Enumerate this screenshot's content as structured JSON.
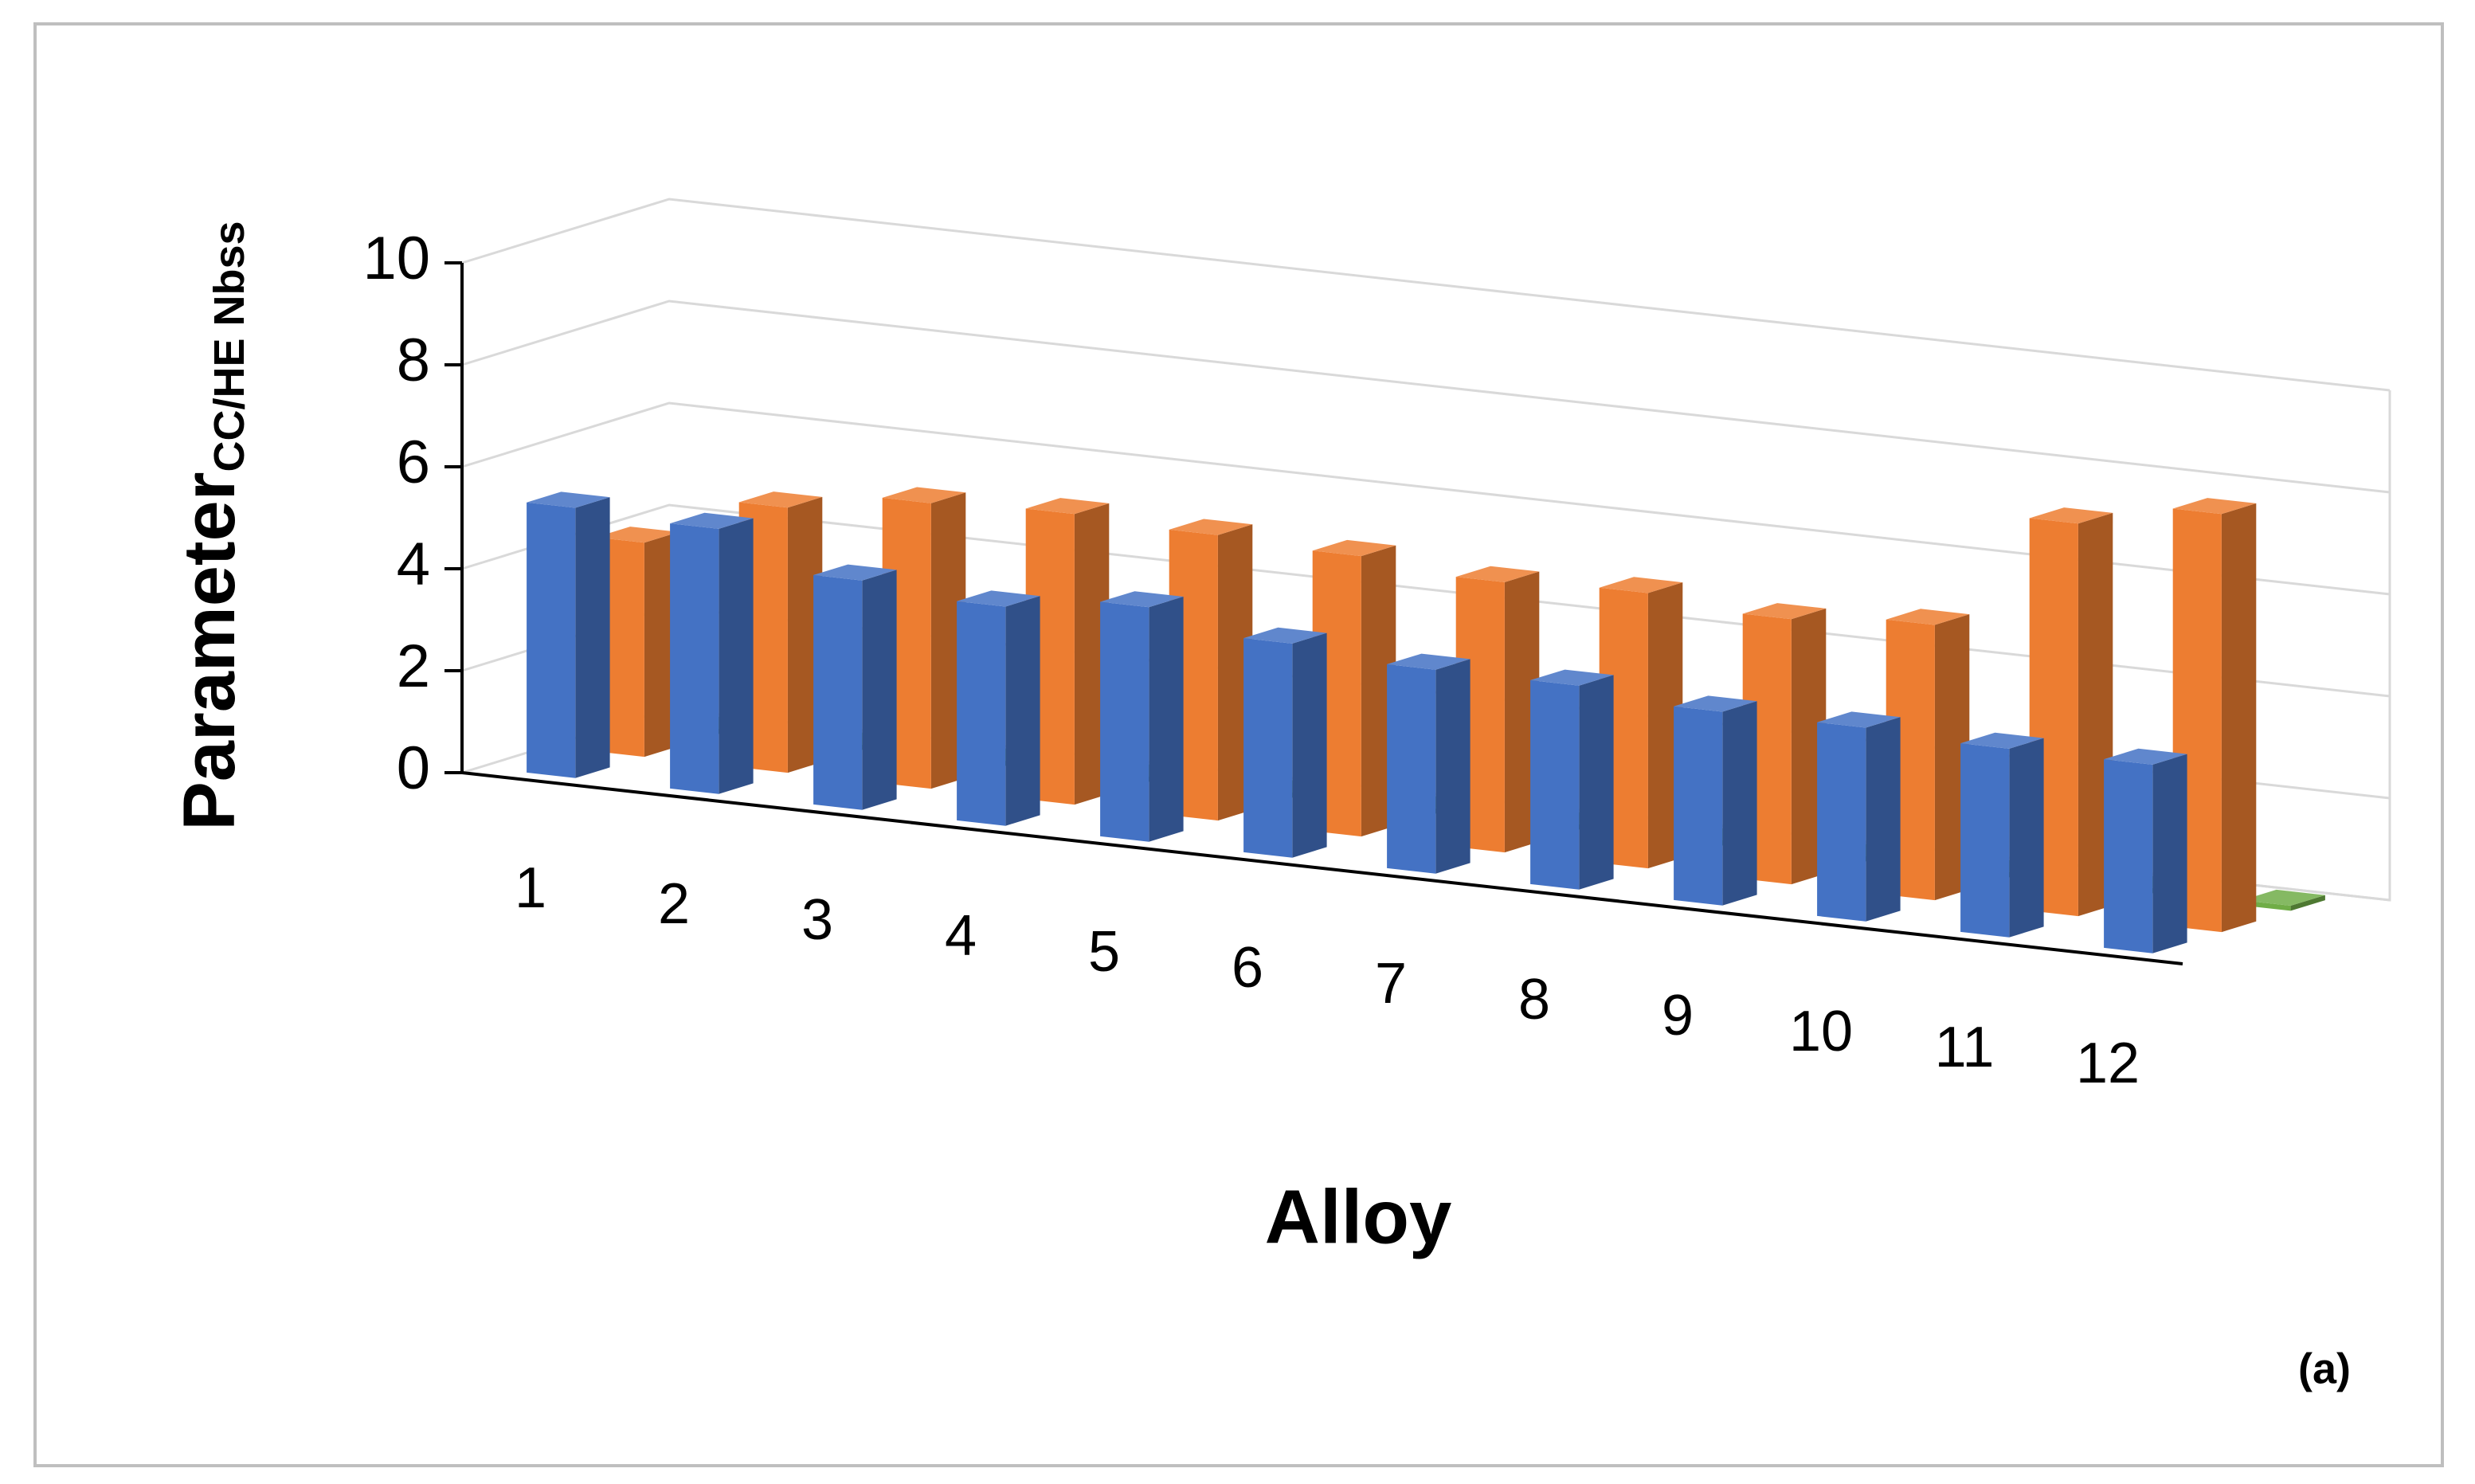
{
  "chart_data": {
    "type": "bar3d",
    "y_label": "Parameter",
    "y_label_sub": "CC/HE Nbss",
    "x_label": "Alloy",
    "panel_label": "(a)",
    "categories": [
      "1",
      "2",
      "3",
      "4",
      "5",
      "6",
      "7",
      "8",
      "9",
      "10",
      "11",
      "12"
    ],
    "series": [
      {
        "color": "#4472c4",
        "values": [
          5.3,
          5.2,
          4.5,
          4.3,
          4.6,
          4.2,
          4.0,
          4.0,
          3.8,
          3.8,
          3.7,
          3.7
        ]
      },
      {
        "color": "#ed7d31",
        "values": [
          4.2,
          5.2,
          5.6,
          5.7,
          5.6,
          5.5,
          5.3,
          5.4,
          5.2,
          5.4,
          7.7,
          8.2
        ]
      },
      {
        "color": "#70ad47",
        "values": [
          0.1,
          0.1,
          0.1,
          0.1,
          0.1,
          0.1,
          0.1,
          0.1,
          0.1,
          0.1,
          0.1,
          0.1
        ]
      }
    ],
    "ylim": [
      0,
      10
    ],
    "yticks": [
      0,
      2,
      4,
      6,
      8,
      10
    ],
    "grid": true
  }
}
